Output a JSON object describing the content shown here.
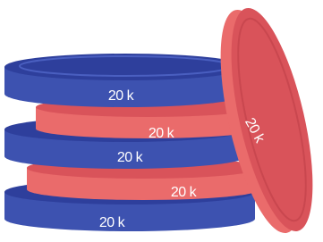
{
  "plates": [
    {
      "label": "20 k"
    },
    {
      "label": "20 k"
    },
    {
      "label": "20 k"
    },
    {
      "label": "20 k"
    },
    {
      "label": "20 k"
    },
    {
      "label": "20 k"
    }
  ]
}
